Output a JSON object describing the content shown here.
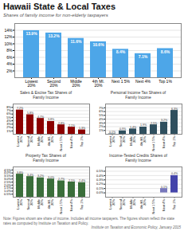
{
  "chart_data": [
    {
      "type": "bar",
      "title": "Hawaii State & Local Taxes",
      "subtitle": "Shares of family income for non-elderly taxpayers",
      "annotations": [
        "Note: Figures shown are share of income. Includes all income taxpayers. The figures shown reflect the state rates as computed by Institute on Taxation and Policy.",
        "Institute on Taxation and Economic Policy, January 2015"
      ],
      "categories": [
        "Lowest\n20%",
        "Second\n20%",
        "Middle\n20%",
        "4th MI.\n20%",
        "Next 1 5%",
        "Next 4%",
        "Top 1%"
      ],
      "values": [
        13.9,
        13.2,
        11.6,
        10.6,
        8.4,
        7.1,
        8.6
      ],
      "value_labels": [
        "13.9%",
        "13.2%",
        "11.6%",
        "10.6%",
        "8.4%",
        "7.1%",
        "8.6%"
      ],
      "color": "#4da6e8",
      "ylim": [
        0,
        16
      ],
      "yticks": [
        {
          "value": 2,
          "label": "2%"
        },
        {
          "value": 4,
          "label": "4%"
        },
        {
          "value": 6,
          "label": "6%"
        },
        {
          "value": 8,
          "label": "8%"
        },
        {
          "value": 10,
          "label": "10%"
        },
        {
          "value": 12,
          "label": "12%"
        },
        {
          "value": 14,
          "label": "14%"
        }
      ],
      "grid": true,
      "data_labels": true
    },
    {
      "type": "bar",
      "title": "Sales & Excise Tax Shares of\nFamily Income",
      "categories": [
        "Lowest\n20%",
        "Second\n20%",
        "Middle\n20%",
        "4th MI.\n20%",
        "Next 1 5%",
        "Next 4%",
        "Top 1%"
      ],
      "values": [
        7.2,
        5.8,
        4.7,
        3.8,
        2.8,
        2.1,
        1.3
      ],
      "value_labels": [
        "7.2%",
        "5.8%",
        "4.7%",
        "3.8%",
        "2.8%",
        "2.1%",
        "1.3%"
      ],
      "color": "#8b0000",
      "ylim": [
        0,
        9
      ],
      "yticks": [
        {
          "value": 1,
          "label": "1%"
        },
        {
          "value": 2,
          "label": "2%"
        },
        {
          "value": 3,
          "label": "3%"
        },
        {
          "value": 4,
          "label": "4%"
        },
        {
          "value": 5,
          "label": "5%"
        },
        {
          "value": 6,
          "label": "6%"
        },
        {
          "value": 7,
          "label": "7%"
        },
        {
          "value": 8,
          "label": "8%"
        }
      ],
      "grid": true,
      "data_labels": true
    },
    {
      "type": "bar",
      "title": "Personal Income Tax Shares of\nFamily Income",
      "categories": [
        "Lowest\n20%",
        "Second\n20%",
        "Middle\n20%",
        "4th MI.\n20%",
        "Next 1 5%",
        "Next 4%",
        "Top 1%"
      ],
      "values": [
        0.1,
        0.9,
        1.4,
        1.9,
        2.5,
        3.2,
        6.3
      ],
      "value_labels": [
        "0.1%",
        "0.9%",
        "1.4%",
        "1.9%",
        "2.5%",
        "3.2%",
        "6.3%"
      ],
      "color": "#2f4f5e",
      "ylim": [
        0,
        8
      ],
      "yticks": [
        {
          "value": 1,
          "label": "1%"
        },
        {
          "value": 2,
          "label": "2%"
        },
        {
          "value": 3,
          "label": "3%"
        },
        {
          "value": 4,
          "label": "4%"
        },
        {
          "value": 5,
          "label": "5%"
        },
        {
          "value": 6,
          "label": "6%"
        },
        {
          "value": 7,
          "label": "7%"
        }
      ],
      "grid": true,
      "data_labels": true
    },
    {
      "type": "bar",
      "title": "Property Tax Shares of\nFamily Income",
      "categories": [
        "Lowest\n20%",
        "Second\n20%",
        "Middle\n20%",
        "4th MI.\n20%",
        "Next 1 5%",
        "Next 4%",
        "Top 1%"
      ],
      "values": [
        3.8,
        3.4,
        3.2,
        3.0,
        2.7,
        2.5,
        2.4
      ],
      "value_labels": [
        "3.8%",
        "3.4%",
        "3.2%",
        "3.0%",
        "2.7%",
        "2.5%",
        "2.4%"
      ],
      "color": "#3a6e3a",
      "ylim": [
        0,
        5
      ],
      "yticks": [
        {
          "value": 0.5,
          "label": "0.5%"
        },
        {
          "value": 1.0,
          "label": "1.0%"
        },
        {
          "value": 1.5,
          "label": "1.5%"
        },
        {
          "value": 2.0,
          "label": "2.0%"
        },
        {
          "value": 2.5,
          "label": "2.5%"
        },
        {
          "value": 3.0,
          "label": "3.0%"
        },
        {
          "value": 3.5,
          "label": "3.5%"
        },
        {
          "value": 4.0,
          "label": "4.0%"
        },
        {
          "value": 4.5,
          "label": "4.5%"
        }
      ],
      "grid": true,
      "data_labels": true
    },
    {
      "type": "bar",
      "title": "Income-Tested Credits Shares of\nFamily Income",
      "categories": [
        "Lowest\n20%",
        "Second\n20%",
        "Middle\n20%",
        "4th MI.\n20%",
        "Next 1 5%",
        "Next 4%",
        "Top 1%"
      ],
      "values": [
        0.0,
        0.0,
        0.0,
        0.0,
        0.0,
        0.1,
        0.4
      ],
      "value_labels": [
        null,
        null,
        null,
        null,
        null,
        "0.1%",
        "0.4%"
      ],
      "colors": [
        "#aaaadd",
        "#aaaadd",
        "#aaaadd",
        "#aaaadd",
        "#aaaadd",
        "#7777bb",
        "#4444aa"
      ],
      "ylim": [
        -0.1,
        0.6
      ],
      "yticks": [
        {
          "value": 0.0,
          "label": "0.0%"
        },
        {
          "value": 0.1,
          "label": "0.1%"
        },
        {
          "value": 0.2,
          "label": "0.2%"
        },
        {
          "value": 0.3,
          "label": "0.3%"
        },
        {
          "value": 0.4,
          "label": "0.4%"
        },
        {
          "value": 0.5,
          "label": "0.5%"
        }
      ],
      "grid": true,
      "data_labels": true
    }
  ]
}
